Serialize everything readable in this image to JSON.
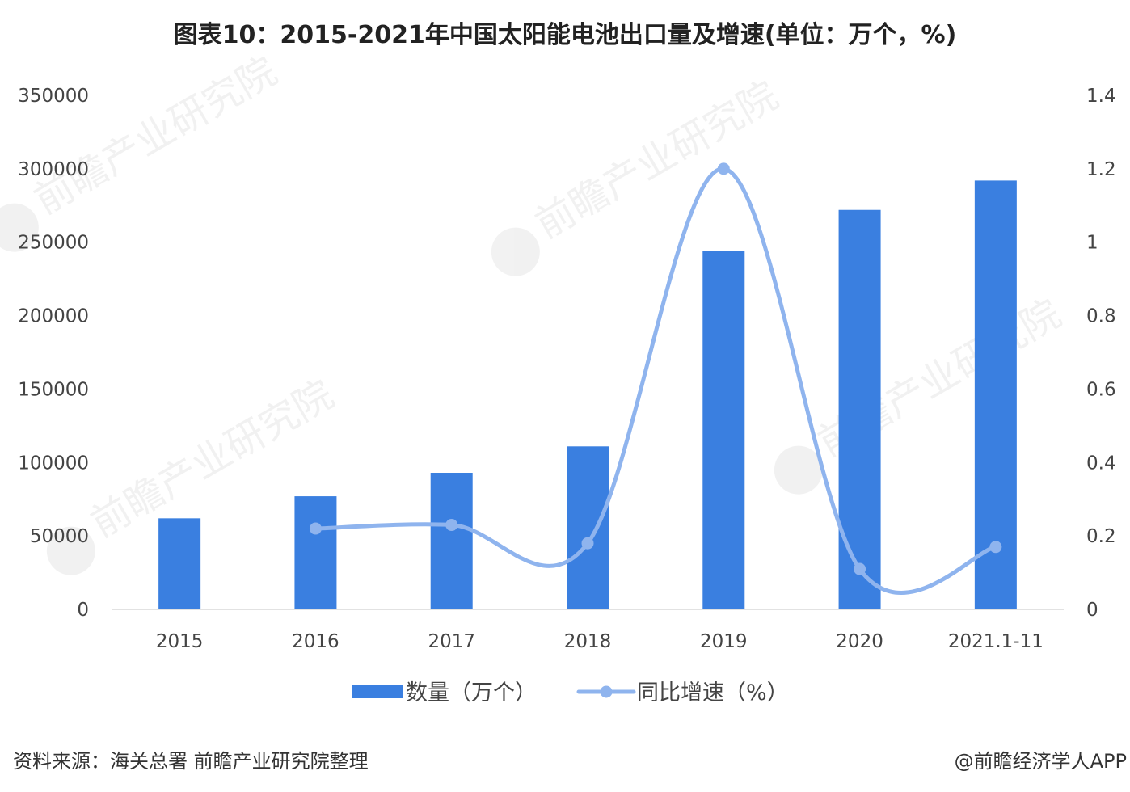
{
  "chart_data": {
    "type": "bar",
    "title": "图表10：2015-2021年中国太阳能电池出口量及增速(单位：万个，%)",
    "categories": [
      "2015",
      "2016",
      "2017",
      "2018",
      "2019",
      "2020",
      "2021.1-11"
    ],
    "series": [
      {
        "name": "数量（万个）",
        "type": "bar",
        "axis": "left",
        "values": [
          62000,
          77000,
          93000,
          111000,
          244000,
          272000,
          292000
        ],
        "color": "#3a7fe0"
      },
      {
        "name": "同比增速（%）",
        "type": "line",
        "axis": "right",
        "smooth": true,
        "values": [
          null,
          0.22,
          0.23,
          0.18,
          1.2,
          0.11,
          0.17
        ],
        "color": "#8fb4ee"
      }
    ],
    "ylim_left": [
      0,
      350000
    ],
    "ylim_right": [
      0,
      1.4
    ],
    "left_ticks": [
      {
        "value": 0,
        "label": "0"
      },
      {
        "value": 50000,
        "label": "50000"
      },
      {
        "value": 100000,
        "label": "100000"
      },
      {
        "value": 150000,
        "label": "150000"
      },
      {
        "value": 200000,
        "label": "200000"
      },
      {
        "value": 250000,
        "label": "250000"
      },
      {
        "value": 300000,
        "label": "300000"
      },
      {
        "value": 350000,
        "label": "350000"
      }
    ],
    "right_ticks": [
      {
        "value": 0,
        "label": "0"
      },
      {
        "value": 0.2,
        "label": "0.2"
      },
      {
        "value": 0.4,
        "label": "0.4"
      },
      {
        "value": 0.6,
        "label": "0.6"
      },
      {
        "value": 0.8,
        "label": "0.8"
      },
      {
        "value": 1,
        "label": "1"
      },
      {
        "value": 1.2,
        "label": "1.2"
      },
      {
        "value": 1.4,
        "label": "1.4"
      }
    ],
    "grid": false,
    "legend_position": "bottom-center"
  },
  "footer": {
    "source": "资料来源：海关总署 前瞻产业研究院整理",
    "credit": "@前瞻经济学人APP"
  },
  "watermark": {
    "text": "前瞻产业研究院"
  }
}
